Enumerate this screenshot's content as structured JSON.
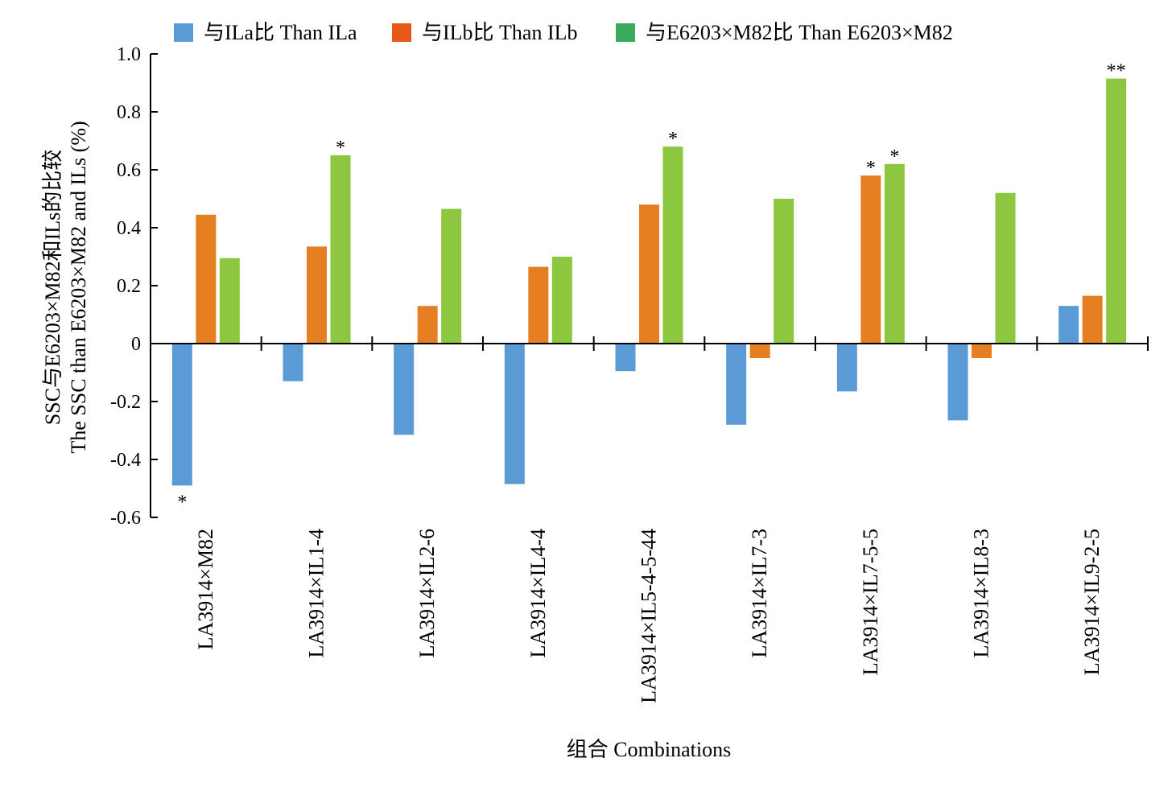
{
  "chart_data": {
    "type": "bar",
    "categories": [
      "LA3914×M82",
      "LA3914×IL1-4",
      "LA3914×IL2-6",
      "LA3914×IL4-4",
      "LA3914×IL5-4-5-44",
      "LA3914×IL7-3",
      "LA3914×IL7-5-5",
      "LA3914×IL8-3",
      "LA3914×IL9-2-5"
    ],
    "series": [
      {
        "name": "与ILa比 Than ILa",
        "color": "#5b9bd5",
        "values": [
          -0.49,
          -0.13,
          -0.315,
          -0.485,
          -0.095,
          -0.28,
          -0.165,
          -0.265,
          0.13
        ]
      },
      {
        "name": "与ILb比 Than ILb",
        "color": "#e67e22",
        "values": [
          0.445,
          0.335,
          0.13,
          0.265,
          0.48,
          -0.05,
          0.58,
          -0.05,
          0.165
        ]
      },
      {
        "name": "与E6203×M82比 Than E6203×M82",
        "color": "#8dc63f",
        "values": [
          0.295,
          0.65,
          0.465,
          0.3,
          0.68,
          0.5,
          0.62,
          0.52,
          0.915
        ]
      }
    ],
    "legend_colors": [
      "#5b9bd5",
      "#e8561a",
      "#3aaa5c"
    ],
    "significance": [
      {
        "category": 0,
        "series": 0,
        "label": "*"
      },
      {
        "category": 1,
        "series": 2,
        "label": "*"
      },
      {
        "category": 4,
        "series": 2,
        "label": "*"
      },
      {
        "category": 6,
        "series": 1,
        "label": "*"
      },
      {
        "category": 6,
        "series": 2,
        "label": "*"
      },
      {
        "category": 8,
        "series": 2,
        "label": "**"
      }
    ],
    "yticks": [
      "1.0",
      "0.8",
      "0.6",
      "0.4",
      "0.2",
      "0",
      "-0.2",
      "-0.4",
      "-0.6"
    ],
    "ylim": [
      -0.6,
      1.0
    ],
    "xlabel": "组合 Combinations",
    "ylabel_line1": "SSC与E6203×M82和ILs的比较",
    "ylabel_line2": "The SSC  than E6203×M82 and ILs (%)",
    "legend_position": "top",
    "grid": false
  }
}
